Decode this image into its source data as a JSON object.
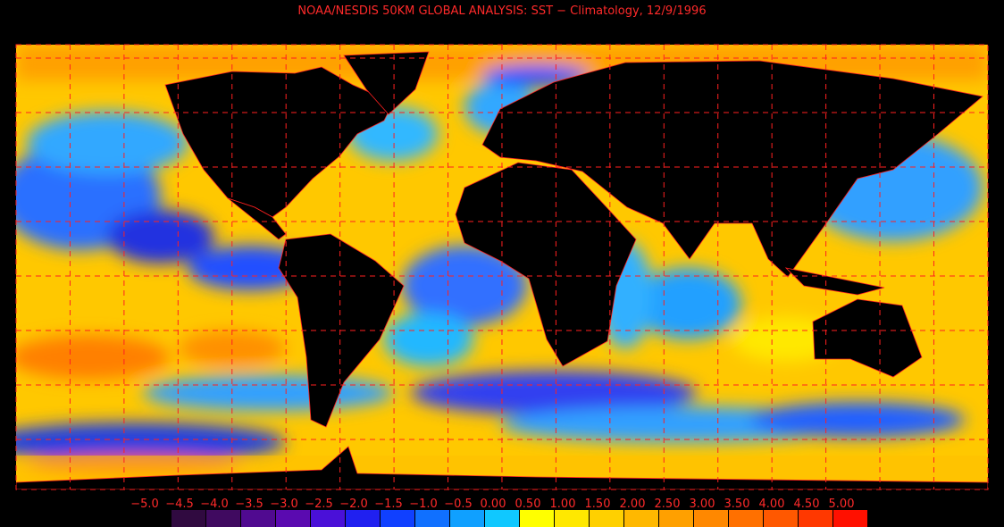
{
  "title": "NOAA/NESDIS 50KM GLOBAL ANALYSIS: SST − Climatology, 12/9/1996",
  "legend": {
    "ticks": [
      {
        "value": -5,
        "label": "−5.0"
      },
      {
        "value": -4.5,
        "label": "−4.5"
      },
      {
        "value": -4,
        "label": "−4.0"
      },
      {
        "value": -3.5,
        "label": "−3.5"
      },
      {
        "value": -3,
        "label": "−3.0"
      },
      {
        "value": -2.5,
        "label": "−2.5"
      },
      {
        "value": -2,
        "label": "−2.0"
      },
      {
        "value": -1.5,
        "label": "−1.5"
      },
      {
        "value": -1,
        "label": "−1.0"
      },
      {
        "value": -0.5,
        "label": "−0.5"
      },
      {
        "value": 0,
        "label": "0.00"
      },
      {
        "value": 0.5,
        "label": "0.50"
      },
      {
        "value": 1,
        "label": "1.00"
      },
      {
        "value": 1.5,
        "label": "1.50"
      },
      {
        "value": 2,
        "label": "2.00"
      },
      {
        "value": 2.5,
        "label": "2.50"
      },
      {
        "value": 3,
        "label": "3.00"
      },
      {
        "value": 3.5,
        "label": "3.50"
      },
      {
        "value": 4,
        "label": "4.00"
      },
      {
        "value": 4.5,
        "label": "4.50"
      },
      {
        "value": 5,
        "label": "5.00"
      }
    ],
    "colors": [
      "#300a40",
      "#400a60",
      "#500a90",
      "#5a0ab0",
      "#4a10d8",
      "#2020f0",
      "#1040ff",
      "#1070ff",
      "#10a0ff",
      "#10c8ff",
      "#ffff00",
      "#ffe800",
      "#ffd000",
      "#ffb800",
      "#ffa000",
      "#ff8800",
      "#ff7000",
      "#ff5800",
      "#ff3800",
      "#ff1000"
    ]
  }
}
